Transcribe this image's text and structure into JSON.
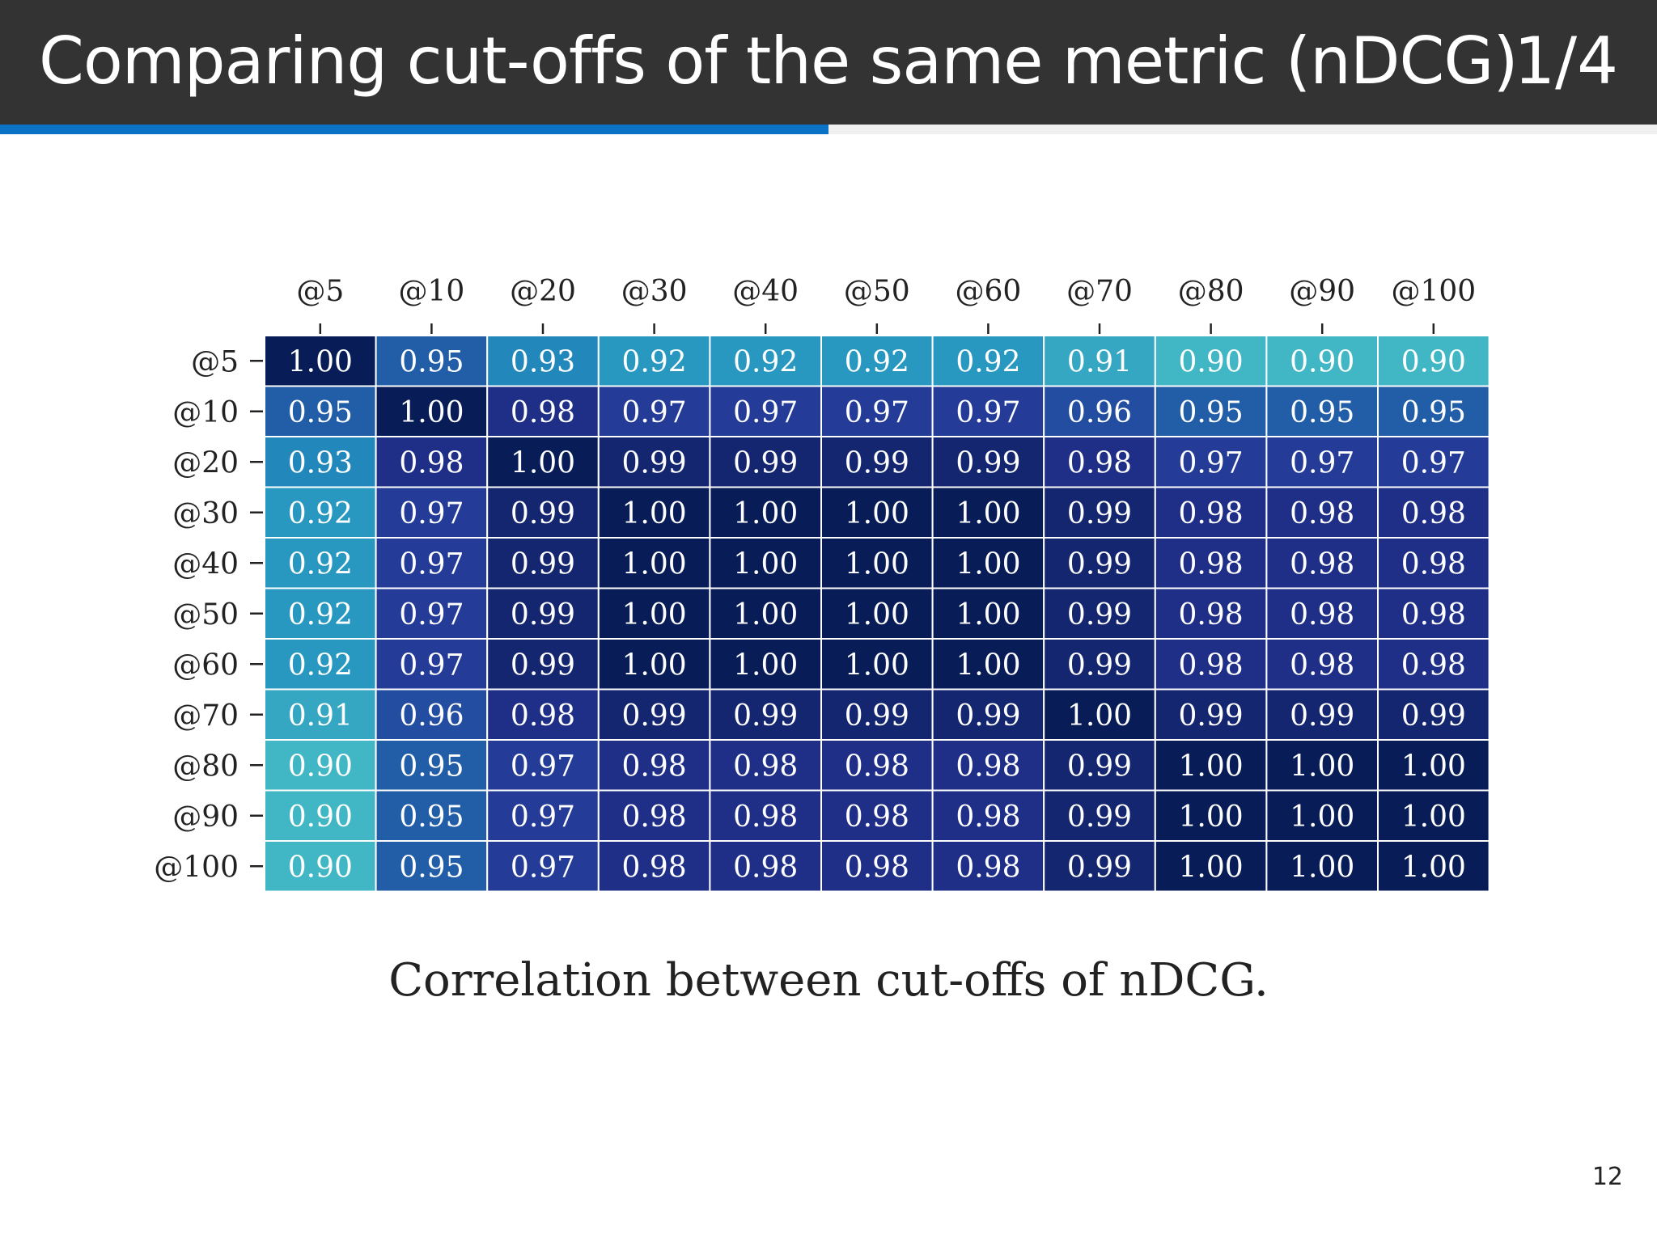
{
  "slide": {
    "title": "Comparing cut-offs of the same metric (nDCG)",
    "frame_counter": "1/4",
    "progress": 0.5,
    "caption": "Correlation between cut-offs of nDCG.",
    "page_number": "12"
  },
  "colors": {
    "title_bar": "#333333",
    "progress_accent": "#0b72c7",
    "colormap_low": "#41b6c4",
    "colormap_high": "#081d58"
  },
  "chart_data": {
    "type": "heatmap",
    "title": "",
    "x_tick_position": "top",
    "x_categories": [
      "@5",
      "@10",
      "@20",
      "@30",
      "@40",
      "@50",
      "@60",
      "@70",
      "@80",
      "@90",
      "@100"
    ],
    "y_categories": [
      "@5",
      "@10",
      "@20",
      "@30",
      "@40",
      "@50",
      "@60",
      "@70",
      "@80",
      "@90",
      "@100"
    ],
    "values": [
      [
        1.0,
        0.95,
        0.93,
        0.92,
        0.92,
        0.92,
        0.92,
        0.91,
        0.9,
        0.9,
        0.9
      ],
      [
        0.95,
        1.0,
        0.98,
        0.97,
        0.97,
        0.97,
        0.97,
        0.96,
        0.95,
        0.95,
        0.95
      ],
      [
        0.93,
        0.98,
        1.0,
        0.99,
        0.99,
        0.99,
        0.99,
        0.98,
        0.97,
        0.97,
        0.97
      ],
      [
        0.92,
        0.97,
        0.99,
        1.0,
        1.0,
        1.0,
        1.0,
        0.99,
        0.98,
        0.98,
        0.98
      ],
      [
        0.92,
        0.97,
        0.99,
        1.0,
        1.0,
        1.0,
        1.0,
        0.99,
        0.98,
        0.98,
        0.98
      ],
      [
        0.92,
        0.97,
        0.99,
        1.0,
        1.0,
        1.0,
        1.0,
        0.99,
        0.98,
        0.98,
        0.98
      ],
      [
        0.92,
        0.97,
        0.99,
        1.0,
        1.0,
        1.0,
        1.0,
        0.99,
        0.98,
        0.98,
        0.98
      ],
      [
        0.91,
        0.96,
        0.98,
        0.99,
        0.99,
        0.99,
        0.99,
        1.0,
        0.99,
        0.99,
        0.99
      ],
      [
        0.9,
        0.95,
        0.97,
        0.98,
        0.98,
        0.98,
        0.98,
        0.99,
        1.0,
        1.0,
        1.0
      ],
      [
        0.9,
        0.95,
        0.97,
        0.98,
        0.98,
        0.98,
        0.98,
        0.99,
        1.0,
        1.0,
        1.0
      ],
      [
        0.9,
        0.95,
        0.97,
        0.98,
        0.98,
        0.98,
        0.98,
        0.99,
        1.0,
        1.0,
        1.0
      ]
    ],
    "value_format": "2 decimals",
    "color_range": [
      0.9,
      1.0
    ],
    "colorbar": false,
    "grid": false
  }
}
